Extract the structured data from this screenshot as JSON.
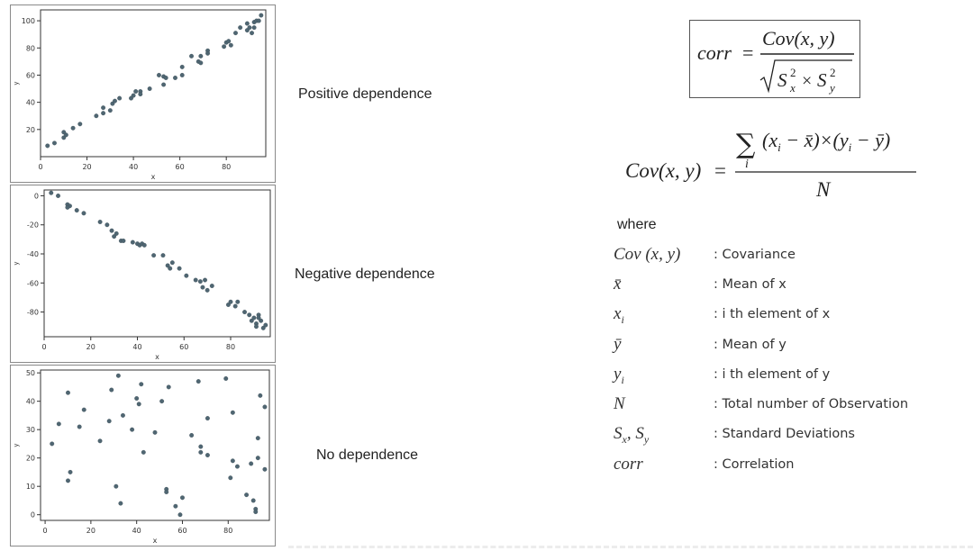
{
  "chart_data": [
    {
      "type": "scatter",
      "xlabel": "x",
      "ylabel": "y",
      "xlim": [
        0,
        97
      ],
      "ylim": [
        0,
        108
      ],
      "xticks": [
        0,
        20,
        40,
        60,
        80
      ],
      "yticks": [
        20,
        40,
        60,
        80,
        100
      ],
      "point_color": "#4f6672",
      "points": [
        [
          3,
          8
        ],
        [
          6,
          10
        ],
        [
          10,
          14
        ],
        [
          11,
          16
        ],
        [
          10,
          18
        ],
        [
          14,
          21
        ],
        [
          17,
          24
        ],
        [
          24,
          30
        ],
        [
          27,
          32
        ],
        [
          27,
          36
        ],
        [
          30,
          34
        ],
        [
          31,
          39
        ],
        [
          32,
          41
        ],
        [
          34,
          43
        ],
        [
          39,
          43
        ],
        [
          40,
          45
        ],
        [
          41,
          48
        ],
        [
          43,
          48
        ],
        [
          43,
          46
        ],
        [
          47,
          50
        ],
        [
          51,
          60
        ],
        [
          53,
          59
        ],
        [
          53,
          53
        ],
        [
          54,
          58
        ],
        [
          58,
          58
        ],
        [
          61,
          60
        ],
        [
          61,
          66
        ],
        [
          65,
          74
        ],
        [
          68,
          70
        ],
        [
          69,
          69
        ],
        [
          69,
          74
        ],
        [
          72,
          78
        ],
        [
          72,
          76
        ],
        [
          79,
          81
        ],
        [
          80,
          84
        ],
        [
          81,
          85
        ],
        [
          82,
          82
        ],
        [
          84,
          91
        ],
        [
          86,
          95
        ],
        [
          89,
          93
        ],
        [
          89,
          98
        ],
        [
          90,
          95
        ],
        [
          91,
          91
        ],
        [
          92,
          99
        ],
        [
          92,
          95
        ],
        [
          93,
          100
        ],
        [
          94,
          100
        ],
        [
          95,
          104
        ]
      ]
    },
    {
      "type": "scatter",
      "xlabel": "x",
      "ylabel": "y",
      "xlim": [
        0,
        97
      ],
      "ylim": [
        -97,
        4
      ],
      "xticks": [
        0,
        20,
        40,
        60,
        80
      ],
      "yticks": [
        0,
        -20,
        -40,
        -60,
        -80
      ],
      "point_color": "#4f6672",
      "points": [
        [
          3,
          2
        ],
        [
          6,
          0
        ],
        [
          10,
          -6
        ],
        [
          11,
          -7
        ],
        [
          10,
          -8
        ],
        [
          14,
          -10
        ],
        [
          17,
          -12
        ],
        [
          24,
          -18
        ],
        [
          27,
          -20
        ],
        [
          29,
          -24
        ],
        [
          30,
          -28
        ],
        [
          31,
          -26
        ],
        [
          33,
          -31
        ],
        [
          34,
          -31
        ],
        [
          38,
          -32
        ],
        [
          40,
          -33
        ],
        [
          41,
          -34
        ],
        [
          42,
          -33
        ],
        [
          43,
          -34
        ],
        [
          47,
          -41
        ],
        [
          51,
          -41
        ],
        [
          53,
          -48
        ],
        [
          54,
          -50
        ],
        [
          55,
          -46
        ],
        [
          58,
          -50
        ],
        [
          61,
          -55
        ],
        [
          65,
          -58
        ],
        [
          67,
          -59
        ],
        [
          68,
          -63
        ],
        [
          69,
          -58
        ],
        [
          70,
          -65
        ],
        [
          72,
          -62
        ],
        [
          79,
          -75
        ],
        [
          80,
          -73
        ],
        [
          82,
          -76
        ],
        [
          83,
          -73
        ],
        [
          86,
          -80
        ],
        [
          88,
          -82
        ],
        [
          89,
          -86
        ],
        [
          90,
          -84
        ],
        [
          91,
          -88
        ],
        [
          92,
          -82
        ],
        [
          92,
          -84
        ],
        [
          93,
          -86
        ],
        [
          94,
          -91
        ],
        [
          95,
          -89
        ],
        [
          91,
          -90
        ]
      ]
    },
    {
      "type": "scatter",
      "xlabel": "x",
      "ylabel": "y",
      "xlim": [
        -2,
        98
      ],
      "ylim": [
        -2,
        51
      ],
      "xticks": [
        0,
        20,
        40,
        60,
        80
      ],
      "yticks": [
        0,
        10,
        20,
        30,
        40,
        50
      ],
      "point_color": "#4f6672",
      "points": [
        [
          3,
          25
        ],
        [
          6,
          32
        ],
        [
          10,
          12
        ],
        [
          10,
          43
        ],
        [
          11,
          15
        ],
        [
          15,
          31
        ],
        [
          17,
          37
        ],
        [
          24,
          26
        ],
        [
          28,
          33
        ],
        [
          29,
          44
        ],
        [
          31,
          10
        ],
        [
          32,
          49
        ],
        [
          33,
          4
        ],
        [
          34,
          35
        ],
        [
          38,
          30
        ],
        [
          40,
          41
        ],
        [
          41,
          39
        ],
        [
          42,
          46
        ],
        [
          43,
          22
        ],
        [
          48,
          29
        ],
        [
          51,
          40
        ],
        [
          53,
          9
        ],
        [
          53,
          8
        ],
        [
          54,
          45
        ],
        [
          57,
          3
        ],
        [
          59,
          0
        ],
        [
          60,
          6
        ],
        [
          64,
          28
        ],
        [
          67,
          47
        ],
        [
          68,
          24
        ],
        [
          68,
          22
        ],
        [
          71,
          21
        ],
        [
          71,
          34
        ],
        [
          79,
          48
        ],
        [
          81,
          13
        ],
        [
          82,
          19
        ],
        [
          82,
          36
        ],
        [
          84,
          17
        ],
        [
          88,
          7
        ],
        [
          90,
          18
        ],
        [
          91,
          5
        ],
        [
          92,
          2
        ],
        [
          92,
          1
        ],
        [
          93,
          20
        ],
        [
          93,
          27
        ],
        [
          94,
          42
        ],
        [
          96,
          38
        ],
        [
          96,
          16
        ]
      ]
    }
  ],
  "labels": {
    "positive": "Positive dependence",
    "negative": "Negative dependence",
    "none": "No dependence"
  },
  "formulas": {
    "corr": {
      "lhs": "corr",
      "equals": "=",
      "numerator": "Cov(x, y)",
      "s": "S",
      "sup": "2",
      "sub_x": "x",
      "sub_y": "y",
      "times": "×"
    },
    "cov": {
      "lhs": "Cov(x, y)",
      "equals": "=",
      "sigma": "∑",
      "sigma_index": "i",
      "numerator": "(x",
      "num_sub_i": "i",
      "num_mid": " − x̄)×(y",
      "num_sub_i2": "i",
      "num_end": " − ȳ)",
      "denominator": "N"
    }
  },
  "legend": {
    "where": "where",
    "items": [
      {
        "symbol": "Cov (x, y)",
        "description": ": Covariance"
      },
      {
        "symbol": "x̄",
        "description": ": Mean of x"
      },
      {
        "symbol": "x",
        "sub": "i",
        "description": ": i th element of x"
      },
      {
        "symbol": "ȳ",
        "description": ": Mean of y"
      },
      {
        "symbol": "y",
        "sub": "i",
        "description": ": i th element of y"
      },
      {
        "symbol": "N",
        "description": ": Total number of Observation"
      },
      {
        "symbol": "S",
        "sub": "x",
        "symbol2": ", S",
        "sub2": "y",
        "description": ": Standard Deviations"
      },
      {
        "symbol": "corr",
        "description": ": Correlation"
      }
    ]
  }
}
